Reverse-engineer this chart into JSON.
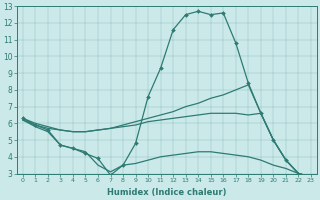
{
  "xlabel": "Humidex (Indice chaleur)",
  "background_color": "#cce9ea",
  "line_color": "#2d7b72",
  "xlim": [
    -0.5,
    23.5
  ],
  "ylim": [
    3,
    13
  ],
  "xticks": [
    0,
    1,
    2,
    3,
    4,
    5,
    6,
    7,
    8,
    9,
    10,
    11,
    12,
    13,
    14,
    15,
    16,
    17,
    18,
    19,
    20,
    21,
    22,
    23
  ],
  "yticks": [
    3,
    4,
    5,
    6,
    7,
    8,
    9,
    10,
    11,
    12,
    13
  ],
  "line1_x": [
    0,
    1,
    2,
    3,
    4,
    5,
    6,
    7,
    8,
    9,
    10,
    11,
    12,
    13,
    14,
    15,
    16,
    17,
    18,
    19,
    20,
    21,
    22,
    23
  ],
  "line1_y": [
    6.3,
    5.9,
    5.6,
    4.7,
    4.5,
    4.2,
    3.9,
    2.9,
    3.5,
    4.8,
    7.6,
    9.3,
    11.6,
    12.5,
    12.7,
    12.5,
    12.6,
    10.8,
    8.4,
    6.6,
    5.0,
    3.8,
    3.0,
    2.8
  ],
  "line2_x": [
    0,
    1,
    2,
    3,
    4,
    5,
    6,
    7,
    8,
    9,
    10,
    11,
    12,
    13,
    14,
    15,
    16,
    17,
    18,
    19,
    20,
    21,
    22,
    23
  ],
  "line2_y": [
    6.3,
    6.0,
    5.8,
    5.6,
    5.5,
    5.5,
    5.6,
    5.7,
    5.9,
    6.1,
    6.3,
    6.5,
    6.7,
    7.0,
    7.2,
    7.5,
    7.7,
    8.0,
    8.3,
    6.6,
    5.0,
    3.8,
    3.0,
    2.8
  ],
  "line3_x": [
    0,
    1,
    2,
    3,
    4,
    5,
    6,
    7,
    8,
    9,
    10,
    11,
    12,
    13,
    14,
    15,
    16,
    17,
    18,
    19,
    20,
    21,
    22,
    23
  ],
  "line3_y": [
    6.2,
    5.9,
    5.7,
    5.6,
    5.5,
    5.5,
    5.6,
    5.7,
    5.8,
    5.9,
    6.1,
    6.2,
    6.3,
    6.4,
    6.5,
    6.6,
    6.6,
    6.6,
    6.5,
    6.6,
    5.0,
    3.8,
    3.0,
    2.8
  ],
  "line4_x": [
    0,
    1,
    2,
    3,
    4,
    5,
    6,
    7,
    8,
    9,
    10,
    11,
    12,
    13,
    14,
    15,
    16,
    17,
    18,
    19,
    20,
    21,
    22,
    23
  ],
  "line4_y": [
    6.2,
    5.8,
    5.5,
    4.7,
    4.5,
    4.3,
    3.5,
    3.1,
    3.5,
    3.6,
    3.8,
    4.0,
    4.1,
    4.2,
    4.3,
    4.3,
    4.2,
    4.1,
    4.0,
    3.8,
    3.5,
    3.3,
    3.0,
    2.8
  ]
}
